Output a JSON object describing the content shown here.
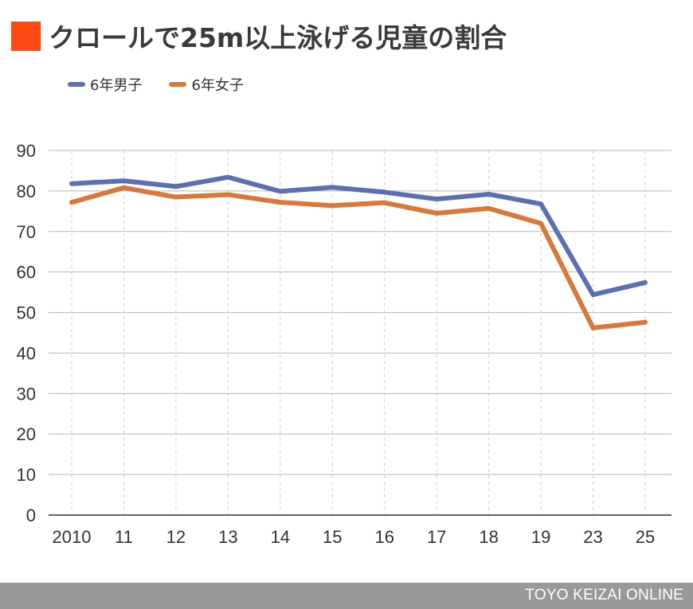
{
  "title": "クロールで25m以上泳げる児童の割合",
  "colors": {
    "title_marker": "#fc4b14",
    "grid": "#b8b8b8",
    "axis": "#333333"
  },
  "footer": {
    "credit": "TOYO KEIZAI ONLINE"
  },
  "chart_data": {
    "type": "line",
    "title": "クロールで25m以上泳げる児童の割合",
    "xlabel": "",
    "ylabel": "",
    "categories": [
      "2010",
      "11",
      "12",
      "13",
      "14",
      "15",
      "16",
      "17",
      "18",
      "19",
      "23",
      "25"
    ],
    "ylim": [
      0,
      90
    ],
    "yticks": [
      0,
      10,
      20,
      30,
      40,
      50,
      60,
      70,
      80,
      90
    ],
    "grid": true,
    "legend": "top-left",
    "series": [
      {
        "name": "6年男子",
        "color": "#5b6fb3",
        "values": [
          81.8,
          82.5,
          81.1,
          83.4,
          79.9,
          80.9,
          79.7,
          78.0,
          79.2,
          76.8,
          54.4,
          57.4
        ]
      },
      {
        "name": "6年女子",
        "color": "#d9783a",
        "values": [
          77.2,
          80.8,
          78.5,
          79.1,
          77.2,
          76.4,
          77.1,
          74.5,
          75.7,
          72.0,
          46.2,
          47.6
        ]
      }
    ]
  }
}
